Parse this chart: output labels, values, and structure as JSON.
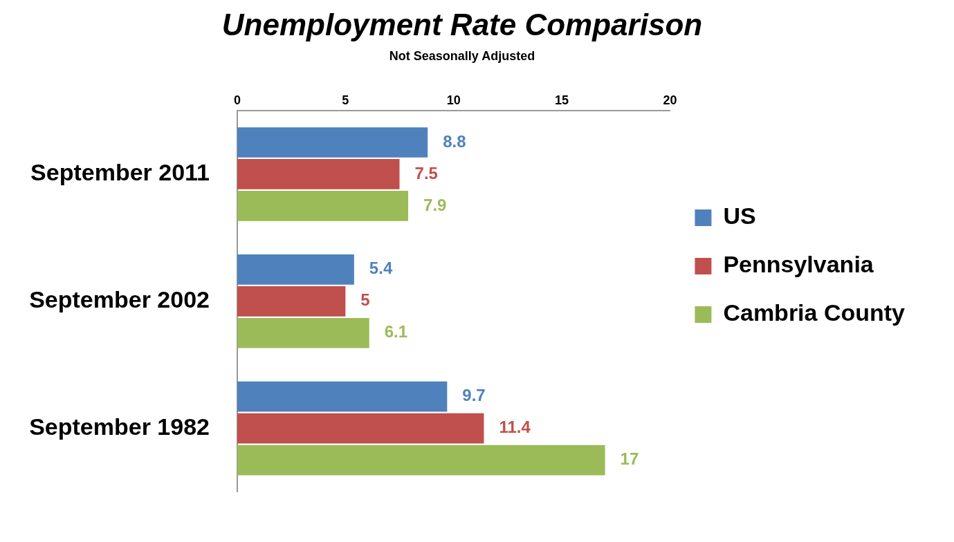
{
  "chart_data": {
    "type": "bar",
    "orientation": "horizontal",
    "title": "Unemployment Rate Comparison",
    "subtitle": "Not Seasonally Adjusted",
    "categories": [
      "September 2011",
      "September 2002",
      "September 1982"
    ],
    "series": [
      {
        "name": "US",
        "color": "#4f81bd",
        "values": [
          8.8,
          5.4,
          9.7
        ]
      },
      {
        "name": "Pennsylvania",
        "color": "#c0504d",
        "values": [
          7.5,
          5,
          11.4
        ]
      },
      {
        "name": "Cambria County",
        "color": "#9bbb59",
        "values": [
          7.9,
          6.1,
          17
        ]
      }
    ],
    "xlim": [
      0,
      20
    ],
    "xticks": [
      0,
      5,
      10,
      15,
      20
    ],
    "data_labels": true,
    "legend": "right",
    "grid": false
  }
}
